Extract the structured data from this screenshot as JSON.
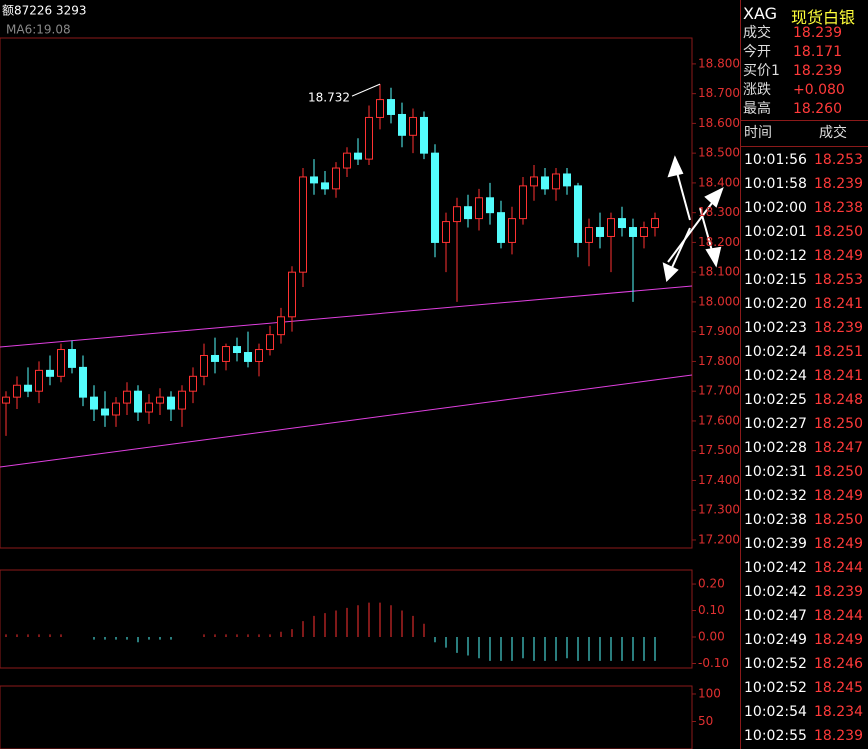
{
  "header": {
    "volume_label": "额87226 3293",
    "ma_label": "MA6:19.08"
  },
  "chart_data": {
    "type": "candlestick",
    "candles": [
      [
        17.66,
        17.7,
        17.55,
        17.68
      ],
      [
        17.68,
        17.75,
        17.64,
        17.72
      ],
      [
        17.72,
        17.78,
        17.68,
        17.7
      ],
      [
        17.7,
        17.8,
        17.66,
        17.77
      ],
      [
        17.77,
        17.82,
        17.72,
        17.75
      ],
      [
        17.75,
        17.86,
        17.73,
        17.84
      ],
      [
        17.84,
        17.87,
        17.76,
        17.78
      ],
      [
        17.78,
        17.82,
        17.65,
        17.68
      ],
      [
        17.68,
        17.72,
        17.6,
        17.64
      ],
      [
        17.64,
        17.7,
        17.58,
        17.62
      ],
      [
        17.62,
        17.68,
        17.58,
        17.66
      ],
      [
        17.66,
        17.73,
        17.62,
        17.7
      ],
      [
        17.7,
        17.72,
        17.6,
        17.63
      ],
      [
        17.63,
        17.69,
        17.59,
        17.66
      ],
      [
        17.66,
        17.71,
        17.62,
        17.68
      ],
      [
        17.68,
        17.7,
        17.6,
        17.64
      ],
      [
        17.64,
        17.72,
        17.58,
        17.7
      ],
      [
        17.7,
        17.78,
        17.66,
        17.75
      ],
      [
        17.75,
        17.86,
        17.72,
        17.82
      ],
      [
        17.82,
        17.88,
        17.76,
        17.8
      ],
      [
        17.8,
        17.86,
        17.77,
        17.85
      ],
      [
        17.85,
        17.88,
        17.8,
        17.83
      ],
      [
        17.83,
        17.9,
        17.78,
        17.8
      ],
      [
        17.8,
        17.86,
        17.75,
        17.84
      ],
      [
        17.84,
        17.92,
        17.82,
        17.89
      ],
      [
        17.89,
        17.98,
        17.86,
        17.95
      ],
      [
        17.95,
        18.12,
        17.9,
        18.1
      ],
      [
        18.1,
        18.45,
        18.05,
        18.42
      ],
      [
        18.42,
        18.48,
        18.36,
        18.4
      ],
      [
        18.4,
        18.44,
        18.36,
        18.38
      ],
      [
        18.38,
        18.47,
        18.35,
        18.45
      ],
      [
        18.45,
        18.52,
        18.42,
        18.5
      ],
      [
        18.5,
        18.55,
        18.46,
        18.48
      ],
      [
        18.48,
        18.66,
        18.46,
        18.62
      ],
      [
        18.62,
        18.732,
        18.58,
        18.68
      ],
      [
        18.68,
        18.72,
        18.6,
        18.63
      ],
      [
        18.63,
        18.67,
        18.52,
        18.56
      ],
      [
        18.56,
        18.65,
        18.5,
        18.62
      ],
      [
        18.62,
        18.64,
        18.48,
        18.5
      ],
      [
        18.5,
        18.53,
        18.15,
        18.2
      ],
      [
        18.2,
        18.3,
        18.1,
        18.27
      ],
      [
        18.27,
        18.35,
        18.0,
        18.32
      ],
      [
        18.32,
        18.36,
        18.25,
        18.28
      ],
      [
        18.28,
        18.38,
        18.24,
        18.35
      ],
      [
        18.35,
        18.4,
        18.26,
        18.3
      ],
      [
        18.3,
        18.34,
        18.18,
        18.2
      ],
      [
        18.2,
        18.32,
        18.16,
        18.28
      ],
      [
        18.28,
        18.42,
        18.26,
        18.39
      ],
      [
        18.39,
        18.46,
        18.34,
        18.42
      ],
      [
        18.42,
        18.45,
        18.36,
        18.38
      ],
      [
        18.38,
        18.45,
        18.34,
        18.43
      ],
      [
        18.43,
        18.45,
        18.36,
        18.39
      ],
      [
        18.39,
        18.4,
        18.15,
        18.2
      ],
      [
        18.2,
        18.28,
        18.12,
        18.25
      ],
      [
        18.25,
        18.3,
        18.18,
        18.22
      ],
      [
        18.22,
        18.3,
        18.1,
        18.28
      ],
      [
        18.28,
        18.32,
        18.22,
        18.25
      ],
      [
        18.25,
        18.28,
        18.0,
        18.22
      ],
      [
        18.22,
        18.27,
        18.18,
        18.25
      ],
      [
        18.25,
        18.3,
        18.22,
        18.28
      ]
    ],
    "high_label": 18.732,
    "ylim": [
      17.173,
      18.887
    ],
    "yticks": [
      {
        "value": 18.8,
        "label": "18.800"
      },
      {
        "value": 18.7,
        "label": "18.700"
      },
      {
        "value": 18.6,
        "label": "18.600"
      },
      {
        "value": 18.5,
        "label": "18.500"
      },
      {
        "value": 18.4,
        "label": "18.400"
      },
      {
        "value": 18.3,
        "label": "18.300"
      },
      {
        "value": 18.2,
        "label": "18.200"
      },
      {
        "value": 18.1,
        "label": "18.100"
      },
      {
        "value": 18.0,
        "label": "18.000"
      },
      {
        "value": 17.9,
        "label": "17.900"
      },
      {
        "value": 17.8,
        "label": "17.800"
      },
      {
        "value": 17.7,
        "label": "17.700"
      },
      {
        "value": 17.6,
        "label": "17.600"
      },
      {
        "value": 17.5,
        "label": "17.500"
      },
      {
        "value": 17.4,
        "label": "17.400"
      },
      {
        "value": 17.3,
        "label": "17.300"
      },
      {
        "value": 17.2,
        "label": "17.200"
      }
    ],
    "up_color": "#ff3232",
    "down_color": "#54fcfc",
    "macd": {
      "values": [
        0.01,
        0.01,
        0.01,
        0.01,
        0.01,
        0.01,
        0.0,
        0.0,
        -0.01,
        -0.01,
        -0.01,
        -0.01,
        -0.02,
        -0.01,
        -0.01,
        -0.01,
        0.0,
        0.0,
        0.01,
        0.01,
        0.01,
        0.01,
        0.01,
        0.01,
        0.01,
        0.02,
        0.03,
        0.06,
        0.08,
        0.09,
        0.1,
        0.11,
        0.12,
        0.13,
        0.13,
        0.12,
        0.1,
        0.08,
        0.05,
        -0.02,
        -0.04,
        -0.06,
        -0.07,
        -0.08,
        -0.09,
        -0.09,
        -0.09,
        -0.08,
        -0.09,
        -0.09,
        -0.09,
        -0.08,
        -0.09,
        -0.09,
        -0.09,
        -0.09,
        -0.09,
        -0.09,
        -0.09,
        -0.09
      ],
      "ylim": [
        -0.117,
        0.253
      ],
      "yticks": [
        {
          "value": 0.2,
          "label": "0.20"
        },
        {
          "value": 0.1,
          "label": "0.10"
        },
        {
          "value": 0.0,
          "label": "0.00"
        },
        {
          "value": -0.1,
          "label": "-0.10"
        }
      ]
    },
    "kdj": {
      "ylim": [
        0,
        114.5
      ],
      "yticks": [
        100,
        50
      ]
    }
  },
  "quote": {
    "symbol": "XAG",
    "name": "现货白银",
    "rows": [
      {
        "label": "成交",
        "value": "18.239"
      },
      {
        "label": "今开",
        "value": "18.171"
      },
      {
        "label": "买价1",
        "value": "18.239"
      },
      {
        "label": "涨跌",
        "value": "+0.080"
      },
      {
        "label": "最高",
        "value": "18.260"
      }
    ],
    "tick_header": {
      "time": "时间",
      "price": "成交"
    },
    "ticks": [
      [
        "10:01:56",
        "18.253"
      ],
      [
        "10:01:58",
        "18.239"
      ],
      [
        "10:02:00",
        "18.238"
      ],
      [
        "10:02:01",
        "18.250"
      ],
      [
        "10:02:12",
        "18.249"
      ],
      [
        "10:02:15",
        "18.253"
      ],
      [
        "10:02:20",
        "18.241"
      ],
      [
        "10:02:23",
        "18.239"
      ],
      [
        "10:02:24",
        "18.251"
      ],
      [
        "10:02:24",
        "18.241"
      ],
      [
        "10:02:25",
        "18.248"
      ],
      [
        "10:02:27",
        "18.250"
      ],
      [
        "10:02:28",
        "18.247"
      ],
      [
        "10:02:31",
        "18.250"
      ],
      [
        "10:02:32",
        "18.249"
      ],
      [
        "10:02:38",
        "18.250"
      ],
      [
        "10:02:39",
        "18.249"
      ],
      [
        "10:02:42",
        "18.244"
      ],
      [
        "10:02:42",
        "18.239"
      ],
      [
        "10:02:47",
        "18.244"
      ],
      [
        "10:02:49",
        "18.249"
      ],
      [
        "10:02:52",
        "18.246"
      ],
      [
        "10:02:52",
        "18.245"
      ],
      [
        "10:02:54",
        "18.234"
      ],
      [
        "10:02:55",
        "18.239"
      ]
    ]
  }
}
